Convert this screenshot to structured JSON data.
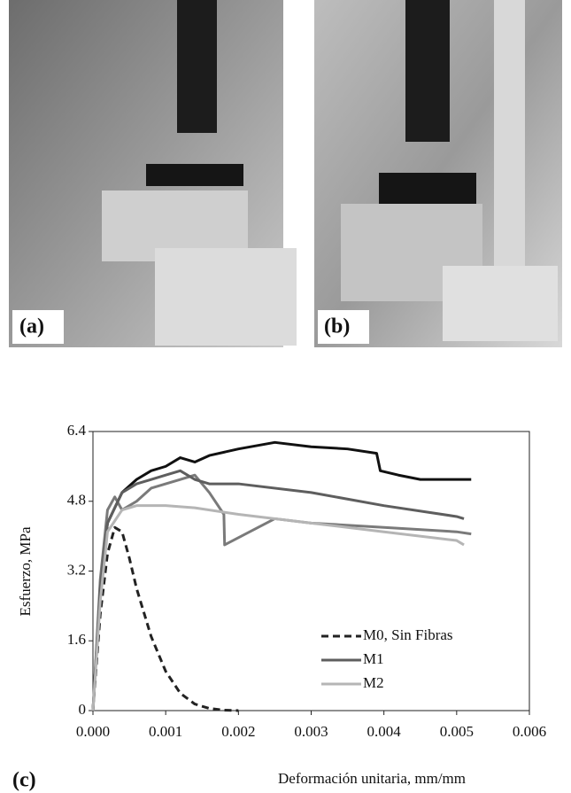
{
  "labels": [
    "(a)",
    "(b)",
    "(c)"
  ],
  "chart_data": {
    "type": "line",
    "x_label": "Deformación unitaria, mm/mm",
    "y_label": "Esfuerzo, MPa",
    "xlim": [
      0,
      0.006
    ],
    "ylim": [
      0,
      6.4
    ],
    "xticks": [
      {
        "value": 0,
        "label": "0.000"
      },
      {
        "value": 0.001,
        "label": "0.001"
      },
      {
        "value": 0.002,
        "label": "0.002"
      },
      {
        "value": 0.003,
        "label": "0.003"
      },
      {
        "value": 0.004,
        "label": "0.004"
      },
      {
        "value": 0.005,
        "label": "0.005"
      },
      {
        "value": 0.006,
        "label": "0.006"
      }
    ],
    "yticks": [
      0,
      1.6,
      3.2,
      4.8,
      6.4
    ],
    "legend": "lower right",
    "series": [
      {
        "color": "#111111",
        "x": [
          0,
          0.0001,
          0.0002,
          0.0004,
          0.0006,
          0.0008,
          0.001,
          0.0012,
          0.0014,
          0.0016,
          0.002,
          0.0025,
          0.003,
          0.0035,
          0.0039,
          0.00395,
          0.0042,
          0.0045,
          0.005,
          0.0052
        ],
        "values": [
          0,
          2.8,
          4.3,
          5.0,
          5.3,
          5.5,
          5.6,
          5.8,
          5.7,
          5.85,
          6.0,
          6.15,
          6.05,
          6.0,
          5.9,
          5.5,
          5.4,
          5.3,
          5.3,
          5.3
        ]
      },
      {
        "color": "#7a7a7a",
        "x": [
          0,
          0.0001,
          0.0002,
          0.0003,
          0.0004,
          0.0006,
          0.0008,
          0.001,
          0.0012,
          0.0014,
          0.0016,
          0.0018,
          0.00181,
          0.0025,
          0.003,
          0.004,
          0.005,
          0.0052
        ],
        "values": [
          0,
          3.0,
          4.6,
          4.9,
          4.6,
          4.8,
          5.1,
          5.2,
          5.3,
          5.4,
          5.0,
          4.5,
          3.8,
          4.4,
          4.3,
          4.2,
          4.1,
          4.05
        ]
      },
      {
        "name": "M0, Sin Fibras",
        "color": "#222222",
        "dashed": true,
        "x": [
          0,
          0.0001,
          0.0002,
          0.0003,
          0.0004,
          0.0005,
          0.0006,
          0.0008,
          0.001,
          0.0012,
          0.0014,
          0.0016,
          0.0018,
          0.002
        ],
        "values": [
          0,
          2.2,
          3.6,
          4.2,
          4.1,
          3.5,
          2.8,
          1.7,
          0.9,
          0.4,
          0.15,
          0.05,
          0.01,
          0
        ]
      },
      {
        "name": "M1",
        "color": "#5e5e5e",
        "x": [
          0,
          0.0001,
          0.0002,
          0.0004,
          0.0006,
          0.0008,
          0.001,
          0.0012,
          0.0014,
          0.0016,
          0.002,
          0.003,
          0.004,
          0.005,
          0.0051
        ],
        "values": [
          0,
          2.8,
          4.3,
          5.0,
          5.2,
          5.3,
          5.4,
          5.5,
          5.3,
          5.2,
          5.2,
          5.0,
          4.7,
          4.45,
          4.4
        ]
      },
      {
        "name": "M2",
        "color": "#b5b5b5",
        "x": [
          0,
          0.0001,
          0.0002,
          0.0004,
          0.0006,
          0.0008,
          0.001,
          0.0014,
          0.002,
          0.003,
          0.004,
          0.005,
          0.0051
        ],
        "values": [
          0,
          2.5,
          4.1,
          4.6,
          4.7,
          4.7,
          4.7,
          4.65,
          4.5,
          4.3,
          4.1,
          3.9,
          3.8
        ]
      }
    ]
  }
}
